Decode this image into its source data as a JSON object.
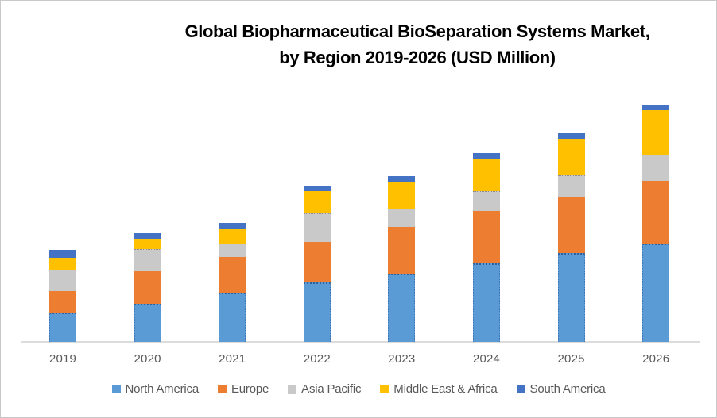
{
  "title": {
    "line1": "Global Biopharmaceutical BioSeparation Systems Market,",
    "line2": "by Region 2019-2026 (USD Million)"
  },
  "colors": {
    "north_america": "#5B9BD5",
    "europe": "#ED7D31",
    "asia_pacific": "#A6A6A6",
    "middle_east_africa": "#FFC000",
    "south_america": "#4472C4",
    "axis_line": "#DCDCDC",
    "label_text": "#595959",
    "title_text": "#000000"
  },
  "chart_data": {
    "type": "bar",
    "stacked": true,
    "title": "Global Biopharmaceutical BioSeparation Systems Market, by Region 2019-2026 (USD Million)",
    "xlabel": "",
    "ylabel": "",
    "grid": false,
    "legend_position": "bottom",
    "y_axis_visible": false,
    "value_units": "relative height (y-axis not labeled in source)",
    "ylim": [
      0,
      310
    ],
    "categories": [
      "2019",
      "2020",
      "2021",
      "2022",
      "2023",
      "2024",
      "2025",
      "2026"
    ],
    "series": [
      {
        "name": "North America",
        "color": "#5B9BD5",
        "pattern": "dotted-edge",
        "values": [
          37,
          48,
          62,
          75,
          86,
          99,
          112,
          124
        ]
      },
      {
        "name": "Europe",
        "color": "#ED7D31",
        "pattern": "solid",
        "values": [
          27,
          41,
          45,
          51,
          59,
          66,
          70,
          79
        ]
      },
      {
        "name": "Asia Pacific",
        "color": "#A6A6A6",
        "pattern": "checker",
        "values": [
          27,
          28,
          17,
          36,
          23,
          25,
          28,
          33
        ]
      },
      {
        "name": "Middle East & Africa",
        "color": "#FFC000",
        "pattern": "solid",
        "values": [
          15,
          13,
          18,
          28,
          34,
          41,
          46,
          56
        ]
      },
      {
        "name": "South America",
        "color": "#4472C4",
        "pattern": "solid",
        "values": [
          10,
          7,
          8,
          7,
          7,
          7,
          7,
          7
        ]
      }
    ]
  }
}
